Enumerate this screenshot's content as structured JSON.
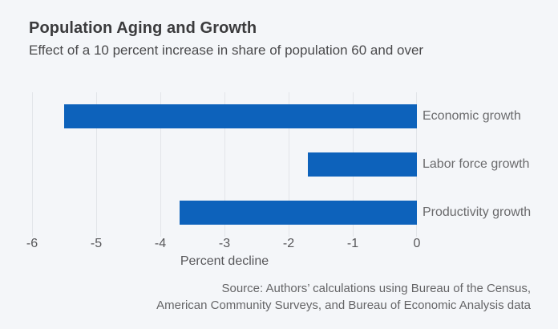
{
  "chart_data": {
    "type": "bar",
    "orientation": "horizontal",
    "title": "Population Aging and Growth",
    "subtitle": "Effect of a 10 percent increase in share of population 60 and over",
    "categories": [
      "Economic growth",
      "Labor force growth",
      "Productivity growth"
    ],
    "values": [
      -5.5,
      -1.7,
      -3.7
    ],
    "xlabel": "Percent decline",
    "xlim": [
      -6,
      0
    ],
    "xticks": [
      -6,
      -5,
      -4,
      -3,
      -2,
      -1,
      0
    ],
    "grid": "vertical",
    "legend": "none",
    "bar_color": "#0d62bb",
    "background_color": "#f4f6f9",
    "gridline_color": "#e2e5e9"
  },
  "source": {
    "line1": "Source: Authors’ calculations using Bureau of the Census,",
    "line2": "American Community Surveys, and Bureau of Economic Analysis data"
  }
}
